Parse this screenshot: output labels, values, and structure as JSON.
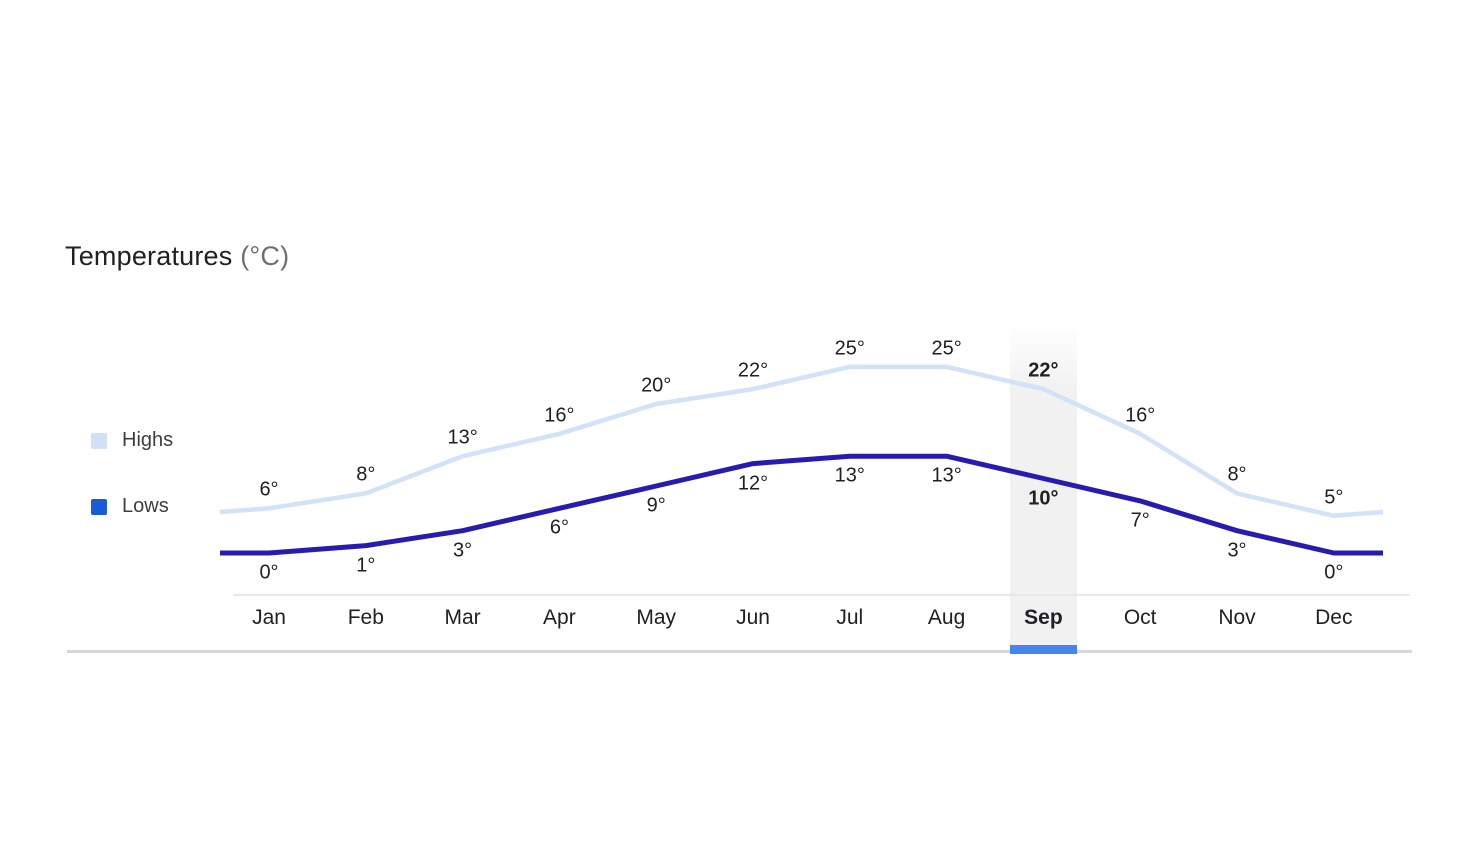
{
  "chart_data": {
    "type": "line",
    "title": "Temperatures",
    "title_unit": "(°C)",
    "unit_suffix": "°",
    "categories": [
      "Jan",
      "Feb",
      "Mar",
      "Apr",
      "May",
      "Jun",
      "Jul",
      "Aug",
      "Sep",
      "Oct",
      "Nov",
      "Dec"
    ],
    "series": [
      {
        "name": "Highs",
        "values": [
          6,
          8,
          13,
          16,
          20,
          22,
          25,
          25,
          22,
          16,
          8,
          5
        ],
        "line_color": "#d2e2f8",
        "legend_color": "#cfe0f8"
      },
      {
        "name": "Lows",
        "values": [
          0,
          1,
          3,
          6,
          9,
          12,
          13,
          13,
          10,
          7,
          3,
          0
        ],
        "line_color": "#271cb0",
        "legend_color": "#1a5cd6"
      }
    ],
    "selected_index": 8,
    "selected_category": "Sep",
    "ylim": [
      -2,
      27
    ],
    "grid": false,
    "legend_position": "left",
    "colors": {
      "selection_band": "#f1f1f2",
      "selection_underline": "#4684ee",
      "axis_line": "#e8e8e8",
      "baseline": "#d7d7d7",
      "label_text": "#202124",
      "title_text": "#202124",
      "title_unit_text": "#6b7075",
      "legend_text": "#3c4043"
    }
  }
}
